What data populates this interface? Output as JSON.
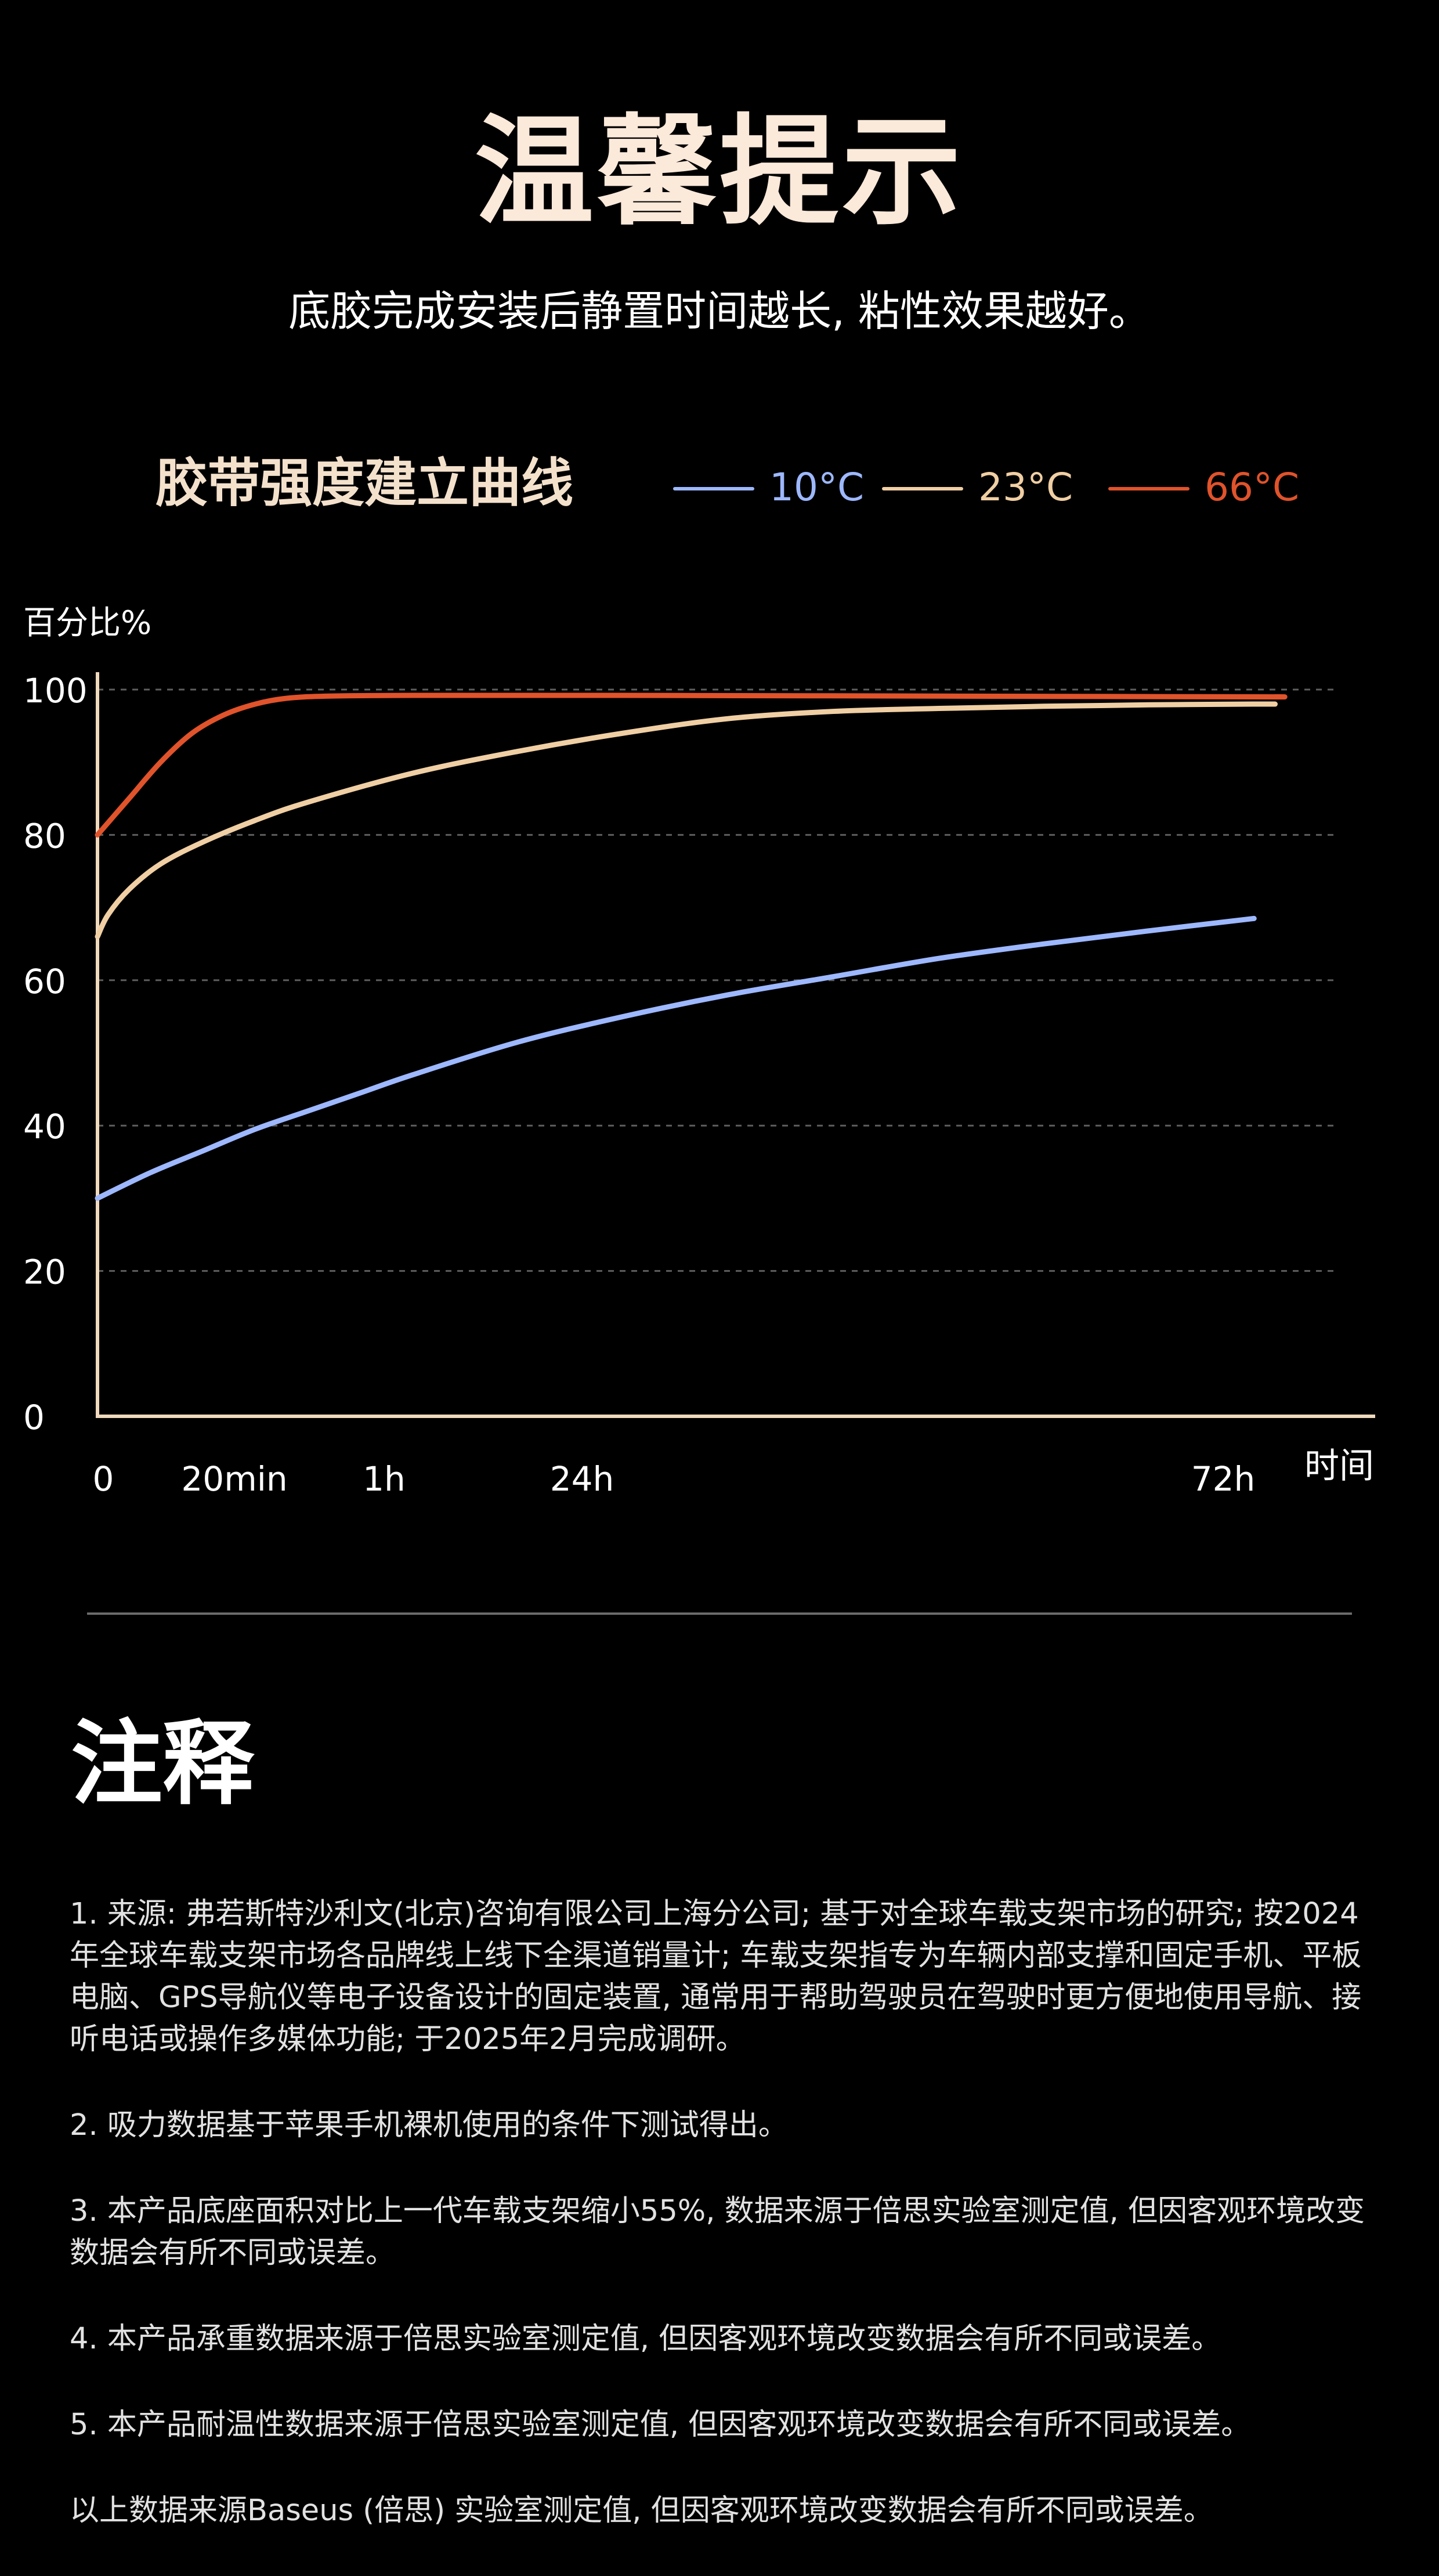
{
  "header": {
    "title": "温馨提示",
    "subtitle": "底胶完成安装后静置时间越长, 粘性效果越好。"
  },
  "chart_data": {
    "type": "line",
    "title": "胶带强度建立曲线",
    "ylabel": "百分比%",
    "xlabel": "时间",
    "ylim": [
      0,
      100
    ],
    "yticks": [
      0,
      20,
      40,
      60,
      80,
      100
    ],
    "x_categories": [
      "0",
      "20min",
      "1h",
      "24h",
      "72h"
    ],
    "grid": true,
    "legend_position": "top",
    "series": [
      {
        "name": "10°C",
        "color": "#9db8ff",
        "points": [
          [
            0,
            30
          ],
          [
            0.5,
            33.5
          ],
          [
            1,
            36.5
          ],
          [
            1.5,
            39.5
          ],
          [
            2,
            42
          ],
          [
            2.5,
            44.5
          ],
          [
            3,
            47
          ],
          [
            4,
            51.5
          ],
          [
            5,
            55
          ],
          [
            6,
            58
          ],
          [
            7,
            60.5
          ],
          [
            8,
            63
          ],
          [
            9,
            65
          ],
          [
            10,
            66.8
          ],
          [
            11,
            68.5
          ]
        ]
      },
      {
        "name": "23°C",
        "color": "#f0cfa4",
        "points": [
          [
            0,
            66
          ],
          [
            0.1,
            69
          ],
          [
            0.3,
            72.5
          ],
          [
            0.6,
            76
          ],
          [
            1,
            79
          ],
          [
            1.5,
            82
          ],
          [
            2,
            84.5
          ],
          [
            3,
            88.5
          ],
          [
            4,
            91.5
          ],
          [
            5,
            94
          ],
          [
            6,
            96
          ],
          [
            7,
            97
          ],
          [
            8,
            97.4
          ],
          [
            9,
            97.7
          ],
          [
            10,
            97.9
          ],
          [
            11,
            98
          ],
          [
            11.2,
            98
          ]
        ]
      },
      {
        "name": "66°C",
        "color": "#e0532b",
        "points": [
          [
            0,
            80
          ],
          [
            0.3,
            85
          ],
          [
            0.6,
            90
          ],
          [
            0.9,
            94
          ],
          [
            1.2,
            96.5
          ],
          [
            1.5,
            98
          ],
          [
            1.8,
            98.8
          ],
          [
            2.2,
            99.1
          ],
          [
            3,
            99.2
          ],
          [
            5,
            99.2
          ],
          [
            8,
            99.1
          ],
          [
            11,
            99
          ],
          [
            11.2,
            99
          ]
        ]
      }
    ]
  },
  "notes": {
    "title": "注释",
    "items": [
      "1. 来源: 弗若斯特沙利文(北京)咨询有限公司上海分公司; 基于对全球车载支架市场的研究; 按2024年全球车载支架市场各品牌线上线下全渠道销量计; 车载支架指专为车辆内部支撑和固定手机、平板电脑、GPS导航仪等电子设备设计的固定装置, 通常用于帮助驾驶员在驾驶时更方便地使用导航、接听电话或操作多媒体功能; 于2025年2月完成调研。",
      "2. 吸力数据基于苹果手机裸机使用的条件下测试得出。",
      "3. 本产品底座面积对比上一代车载支架缩小55%, 数据来源于倍思实验室测定值, 但因客观环境改变数据会有所不同或误差。",
      "4. 本产品承重数据来源于倍思实验室测定值, 但因客观环境改变数据会有所不同或误差。",
      "5. 本产品耐温性数据来源于倍思实验室测定值, 但因客观环境改变数据会有所不同或误差。",
      "以上数据来源Baseus (倍思) 实验室测定值, 但因客观环境改变数据会有所不同或误差。"
    ]
  }
}
